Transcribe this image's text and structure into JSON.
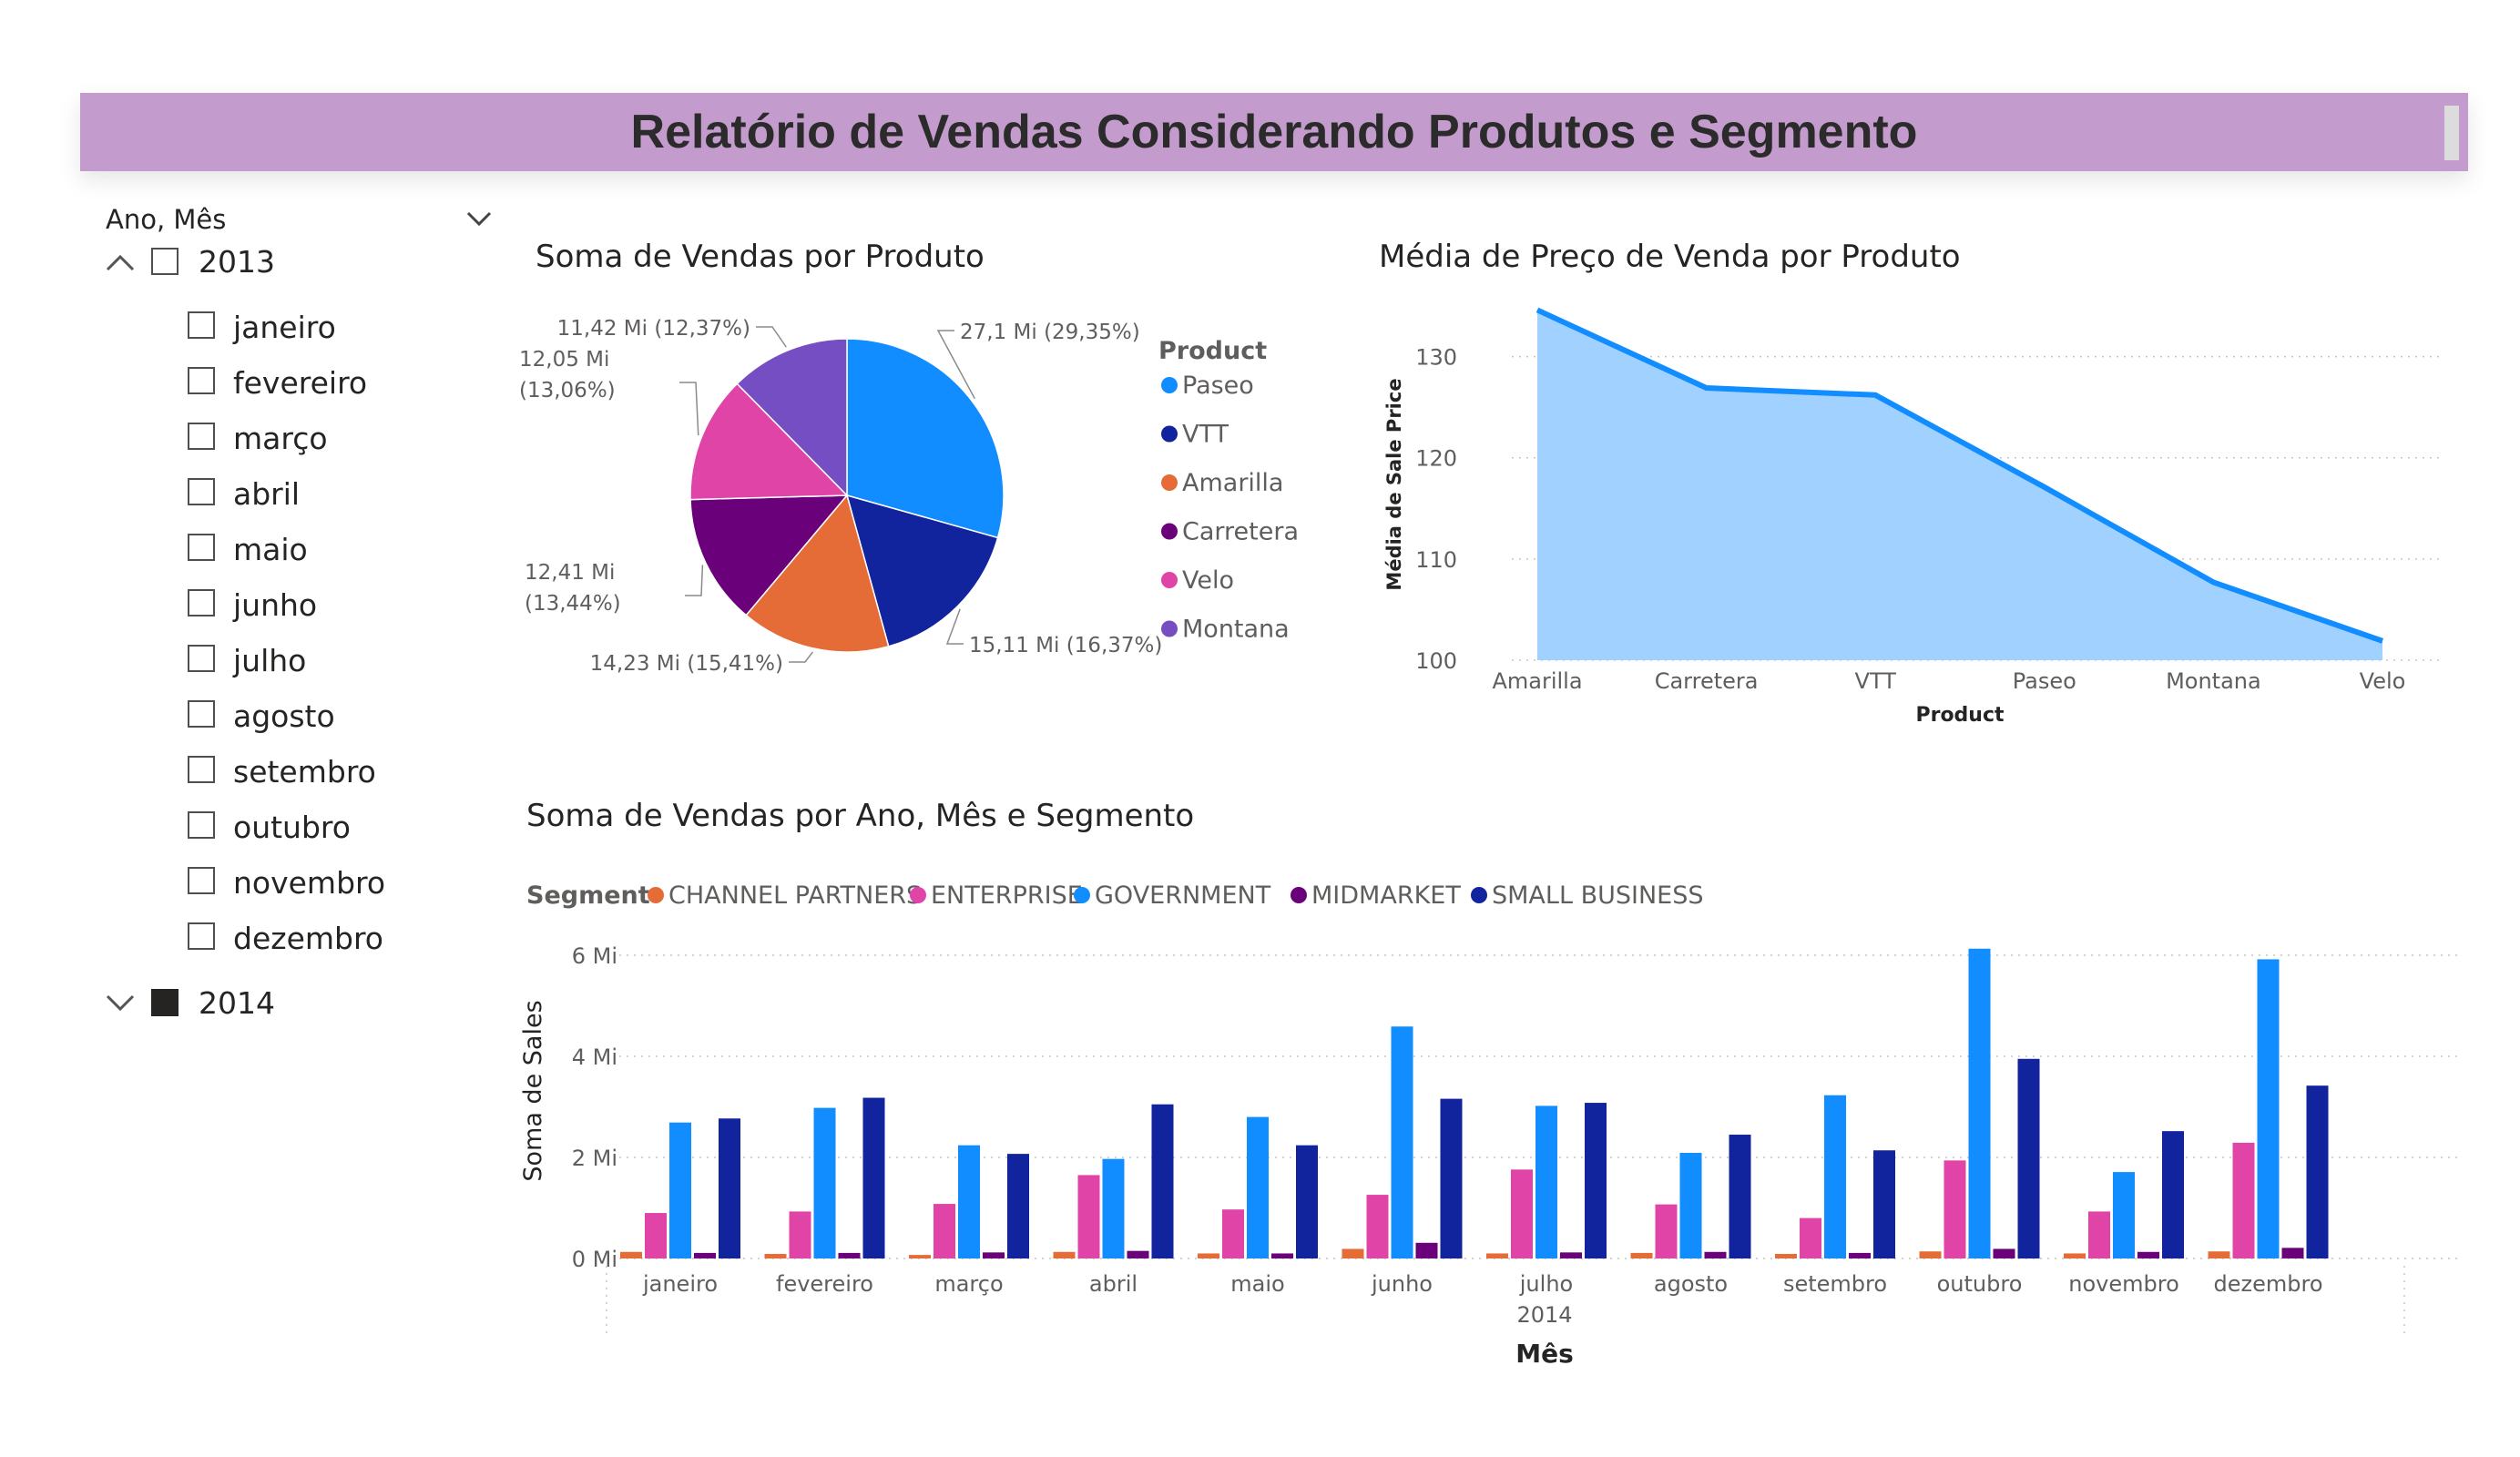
{
  "header": {
    "title": "Relatório de Vendas Considerando Produtos e Segmento"
  },
  "slicer": {
    "title": "Ano, Mês",
    "years": [
      {
        "label": "2013",
        "expanded": true,
        "checked": false,
        "months": [
          "janeiro",
          "fevereiro",
          "março",
          "abril",
          "maio",
          "junho",
          "julho",
          "agosto",
          "setembro",
          "outubro",
          "novembro",
          "dezembro"
        ]
      },
      {
        "label": "2014",
        "expanded": false,
        "checked": true
      }
    ]
  },
  "colors": {
    "banner": "#c39bcc",
    "Paseo": "#118dff",
    "VTT": "#12239e",
    "Amarilla": "#e66c37",
    "Carretera": "#6b007b",
    "Velo": "#e044a7",
    "Montana": "#744ec2",
    "area_fill": "#a0d1ff",
    "area_line": "#118dff"
  },
  "chart_data": [
    {
      "type": "pie",
      "title": "Soma de Vendas por Produto",
      "legend_title": "Product",
      "legend_position": "right",
      "slices": [
        {
          "name": "Paseo",
          "value": 27.1,
          "label": "27,1 Mi (29,35%)",
          "color": "#118dff"
        },
        {
          "name": "VTT",
          "value": 15.11,
          "label": "15,11 Mi (16,37%)",
          "color": "#12239e"
        },
        {
          "name": "Amarilla",
          "value": 14.23,
          "label": "14,23 Mi (15,41%)",
          "color": "#e66c37"
        },
        {
          "name": "Carretera",
          "value": 12.41,
          "label": "12,41 Mi (13,44%)",
          "color": "#6b007b"
        },
        {
          "name": "Velo",
          "value": 12.05,
          "label": "12,05 Mi (13,06%)",
          "color": "#e044a7"
        },
        {
          "name": "Montana",
          "value": 11.42,
          "label": "11,42 Mi (12,37%)",
          "color": "#744ec2"
        }
      ]
    },
    {
      "type": "area",
      "title": "Média de Preço de Venda por Produto",
      "xlabel": "Product",
      "ylabel": "Média de Sale Price",
      "categories": [
        "Amarilla",
        "Carretera",
        "VTT",
        "Paseo",
        "Montana",
        "Velo"
      ],
      "values": [
        134.6,
        126.9,
        126.2,
        117.1,
        107.7,
        101.9
      ],
      "ylim": [
        100,
        135
      ],
      "yticks": [
        "100",
        "110",
        "120",
        "130"
      ],
      "ytick_values": [
        100,
        110,
        120,
        130
      ],
      "grid": true
    },
    {
      "type": "bar",
      "title": "Soma de Vendas por Ano, Mês e Segmento",
      "legend_title": "Segment",
      "legend_position": "top-left",
      "xlabel": "Mês",
      "x_group_label": "2014",
      "ylabel": "Soma de Sales",
      "ylim": [
        0,
        6.2
      ],
      "yticks": [
        "0 Mi",
        "2 Mi",
        "4 Mi",
        "6 Mi"
      ],
      "ytick_values": [
        0,
        2,
        4,
        6
      ],
      "grid": true,
      "categories": [
        "janeiro",
        "fevereiro",
        "março",
        "abril",
        "maio",
        "junho",
        "julho",
        "agosto",
        "setembro",
        "outubro",
        "novembro",
        "dezembro"
      ],
      "series": [
        {
          "name": "CHANNEL PARTNERS",
          "color": "#e66c37",
          "values": [
            0.13,
            0.09,
            0.07,
            0.13,
            0.1,
            0.19,
            0.1,
            0.11,
            0.09,
            0.14,
            0.1,
            0.14
          ]
        },
        {
          "name": "ENTERPRISE",
          "color": "#e044a7",
          "values": [
            0.9,
            0.93,
            1.08,
            1.65,
            0.97,
            1.26,
            1.76,
            1.07,
            0.8,
            1.94,
            0.93,
            2.29
          ]
        },
        {
          "name": "GOVERNMENT",
          "color": "#118dff",
          "values": [
            2.69,
            2.98,
            2.24,
            1.97,
            2.8,
            4.59,
            3.02,
            2.09,
            3.23,
            6.13,
            1.71,
            5.92
          ]
        },
        {
          "name": "MIDMARKET",
          "color": "#6b007b",
          "values": [
            0.11,
            0.11,
            0.12,
            0.15,
            0.1,
            0.31,
            0.12,
            0.13,
            0.11,
            0.19,
            0.13,
            0.21
          ]
        },
        {
          "name": "SMALL BUSINESS",
          "color": "#12239e",
          "values": [
            2.77,
            3.18,
            2.07,
            3.05,
            2.24,
            3.16,
            3.08,
            2.45,
            2.14,
            3.95,
            2.52,
            3.42
          ]
        }
      ]
    }
  ]
}
